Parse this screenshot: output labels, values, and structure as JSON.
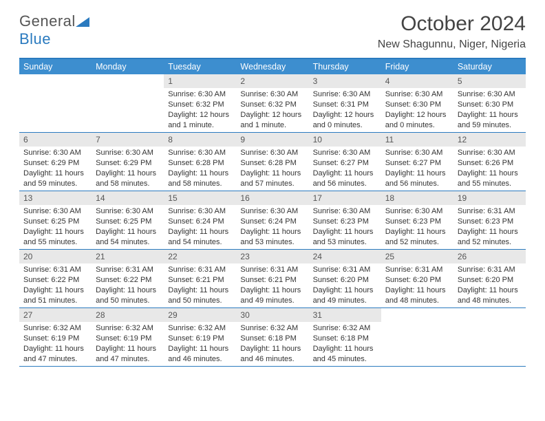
{
  "logo": {
    "word1": "General",
    "word2": "Blue"
  },
  "title": "October 2024",
  "subtitle": "New Shagunnu, Niger, Nigeria",
  "colors": {
    "header_bg": "#3d8ecf",
    "border": "#2a7abf",
    "daynum_bg": "#e8e8e8",
    "page_bg": "#ffffff"
  },
  "weekdays": [
    "Sunday",
    "Monday",
    "Tuesday",
    "Wednesday",
    "Thursday",
    "Friday",
    "Saturday"
  ],
  "first_weekday_index": 2,
  "days": [
    {
      "n": 1,
      "sunrise": "6:30 AM",
      "sunset": "6:32 PM",
      "daylight": "12 hours and 1 minute."
    },
    {
      "n": 2,
      "sunrise": "6:30 AM",
      "sunset": "6:32 PM",
      "daylight": "12 hours and 1 minute."
    },
    {
      "n": 3,
      "sunrise": "6:30 AM",
      "sunset": "6:31 PM",
      "daylight": "12 hours and 0 minutes."
    },
    {
      "n": 4,
      "sunrise": "6:30 AM",
      "sunset": "6:30 PM",
      "daylight": "12 hours and 0 minutes."
    },
    {
      "n": 5,
      "sunrise": "6:30 AM",
      "sunset": "6:30 PM",
      "daylight": "11 hours and 59 minutes."
    },
    {
      "n": 6,
      "sunrise": "6:30 AM",
      "sunset": "6:29 PM",
      "daylight": "11 hours and 59 minutes."
    },
    {
      "n": 7,
      "sunrise": "6:30 AM",
      "sunset": "6:29 PM",
      "daylight": "11 hours and 58 minutes."
    },
    {
      "n": 8,
      "sunrise": "6:30 AM",
      "sunset": "6:28 PM",
      "daylight": "11 hours and 58 minutes."
    },
    {
      "n": 9,
      "sunrise": "6:30 AM",
      "sunset": "6:28 PM",
      "daylight": "11 hours and 57 minutes."
    },
    {
      "n": 10,
      "sunrise": "6:30 AM",
      "sunset": "6:27 PM",
      "daylight": "11 hours and 56 minutes."
    },
    {
      "n": 11,
      "sunrise": "6:30 AM",
      "sunset": "6:27 PM",
      "daylight": "11 hours and 56 minutes."
    },
    {
      "n": 12,
      "sunrise": "6:30 AM",
      "sunset": "6:26 PM",
      "daylight": "11 hours and 55 minutes."
    },
    {
      "n": 13,
      "sunrise": "6:30 AM",
      "sunset": "6:25 PM",
      "daylight": "11 hours and 55 minutes."
    },
    {
      "n": 14,
      "sunrise": "6:30 AM",
      "sunset": "6:25 PM",
      "daylight": "11 hours and 54 minutes."
    },
    {
      "n": 15,
      "sunrise": "6:30 AM",
      "sunset": "6:24 PM",
      "daylight": "11 hours and 54 minutes."
    },
    {
      "n": 16,
      "sunrise": "6:30 AM",
      "sunset": "6:24 PM",
      "daylight": "11 hours and 53 minutes."
    },
    {
      "n": 17,
      "sunrise": "6:30 AM",
      "sunset": "6:23 PM",
      "daylight": "11 hours and 53 minutes."
    },
    {
      "n": 18,
      "sunrise": "6:30 AM",
      "sunset": "6:23 PM",
      "daylight": "11 hours and 52 minutes."
    },
    {
      "n": 19,
      "sunrise": "6:31 AM",
      "sunset": "6:23 PM",
      "daylight": "11 hours and 52 minutes."
    },
    {
      "n": 20,
      "sunrise": "6:31 AM",
      "sunset": "6:22 PM",
      "daylight": "11 hours and 51 minutes."
    },
    {
      "n": 21,
      "sunrise": "6:31 AM",
      "sunset": "6:22 PM",
      "daylight": "11 hours and 50 minutes."
    },
    {
      "n": 22,
      "sunrise": "6:31 AM",
      "sunset": "6:21 PM",
      "daylight": "11 hours and 50 minutes."
    },
    {
      "n": 23,
      "sunrise": "6:31 AM",
      "sunset": "6:21 PM",
      "daylight": "11 hours and 49 minutes."
    },
    {
      "n": 24,
      "sunrise": "6:31 AM",
      "sunset": "6:20 PM",
      "daylight": "11 hours and 49 minutes."
    },
    {
      "n": 25,
      "sunrise": "6:31 AM",
      "sunset": "6:20 PM",
      "daylight": "11 hours and 48 minutes."
    },
    {
      "n": 26,
      "sunrise": "6:31 AM",
      "sunset": "6:20 PM",
      "daylight": "11 hours and 48 minutes."
    },
    {
      "n": 27,
      "sunrise": "6:32 AM",
      "sunset": "6:19 PM",
      "daylight": "11 hours and 47 minutes."
    },
    {
      "n": 28,
      "sunrise": "6:32 AM",
      "sunset": "6:19 PM",
      "daylight": "11 hours and 47 minutes."
    },
    {
      "n": 29,
      "sunrise": "6:32 AM",
      "sunset": "6:19 PM",
      "daylight": "11 hours and 46 minutes."
    },
    {
      "n": 30,
      "sunrise": "6:32 AM",
      "sunset": "6:18 PM",
      "daylight": "11 hours and 46 minutes."
    },
    {
      "n": 31,
      "sunrise": "6:32 AM",
      "sunset": "6:18 PM",
      "daylight": "11 hours and 45 minutes."
    }
  ],
  "labels": {
    "sunrise_prefix": "Sunrise: ",
    "sunset_prefix": "Sunset: ",
    "daylight_prefix": "Daylight: "
  }
}
